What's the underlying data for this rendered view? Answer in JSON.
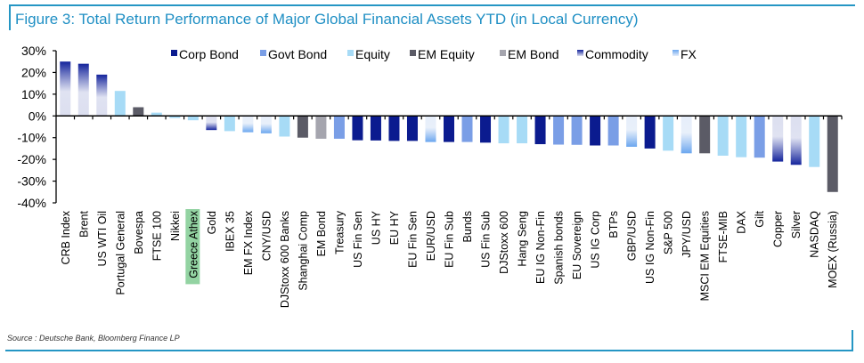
{
  "title": "Figure 3: Total Return Performance of Major Global Financial Assets YTD (in Local Currency)",
  "source": "Source : Deutsche Bank, Bloomberg Finance LP",
  "chart_data": {
    "type": "bar",
    "title": "Figure 3: Total Return Performance of Major Global Financial Assets YTD (in Local Currency)",
    "xlabel": "",
    "ylabel": "",
    "ylim": [
      -40,
      30
    ],
    "yticks": [
      30,
      20,
      10,
      0,
      -10,
      -20,
      -30,
      -40
    ],
    "ytick_labels": [
      "30%",
      "20%",
      "10%",
      "0%",
      "-10%",
      "-20%",
      "-30%",
      "-40%"
    ],
    "grid": false,
    "legend_position": "top",
    "highlighted_category": "Greece Athex",
    "highlight_color": "#93d3a2",
    "series_styles": [
      {
        "name": "Corp Bond",
        "key": "corp",
        "color": "#0b1b8f"
      },
      {
        "name": "Govt Bond",
        "key": "govt",
        "color": "#7a9ee6"
      },
      {
        "name": "Equity",
        "key": "equity",
        "color": "#a7dbf6"
      },
      {
        "name": "EM Equity",
        "key": "emeq",
        "color": "#5b5b66"
      },
      {
        "name": "EM Bond",
        "key": "embond",
        "color": "#a5a5ae"
      },
      {
        "name": "Commodity",
        "key": "commodity",
        "color": "#14249c",
        "gradient_light": "#dcdff0"
      },
      {
        "name": "FX",
        "key": "fx",
        "color": "#6aa6ef",
        "gradient_light": "#e6eefa"
      }
    ],
    "categories": [
      "CRB Index",
      "Brent",
      "US WTI Oil",
      "Portugal General",
      "Bovespa",
      "FTSE 100",
      "Nikkei",
      "Greece Athex",
      "Gold",
      "IBEX 35",
      "EM FX Index",
      "CNY/USD",
      "DJStoxx 600 Banks",
      "Shanghai Comp",
      "EM Bond",
      "Treasury",
      "US Fin Sen",
      "US HY",
      "EU HY",
      "EU Fin Sen",
      "EUR/USD",
      "EU Fin Sub",
      "Bunds",
      "US Fin Sub",
      "DJStoxx 600",
      "Hang Seng",
      "EU IG Non-Fin",
      "Spanish bonds",
      "EU Sovereign",
      "US IG Corp",
      "BTPs",
      "GBP/USD",
      "US IG Non-Fin",
      "S&P 500",
      "JPY/USD",
      "MSCI EM Equities",
      "FTSE-MIB",
      "DAX",
      "Gilt",
      "Copper",
      "Silver",
      "NASDAQ",
      "MOEX (Russia)"
    ],
    "asset_class": [
      "commodity",
      "commodity",
      "commodity",
      "equity",
      "emeq",
      "equity",
      "equity",
      "equity",
      "commodity",
      "equity",
      "fx",
      "fx",
      "equity",
      "emeq",
      "embond",
      "govt",
      "corp",
      "corp",
      "corp",
      "corp",
      "fx",
      "corp",
      "govt",
      "corp",
      "equity",
      "equity",
      "corp",
      "govt",
      "govt",
      "corp",
      "govt",
      "fx",
      "corp",
      "equity",
      "fx",
      "emeq",
      "equity",
      "equity",
      "govt",
      "commodity",
      "commodity",
      "equity",
      "emeq"
    ],
    "values": [
      25,
      24,
      19,
      11.5,
      4,
      1.5,
      -1,
      -2,
      -6.5,
      -7,
      -7.5,
      -8,
      -9.5,
      -10,
      -10.5,
      -10.5,
      -11.2,
      -11.3,
      -11.5,
      -11.5,
      -12,
      -12,
      -12,
      -12.3,
      -12.6,
      -12.6,
      -13,
      -13.2,
      -13.3,
      -13.6,
      -13.6,
      -14.2,
      -15,
      -16,
      -17.2,
      -17.2,
      -18.3,
      -19,
      -19.2,
      -21,
      -22.5,
      -23.5,
      -35
    ]
  }
}
